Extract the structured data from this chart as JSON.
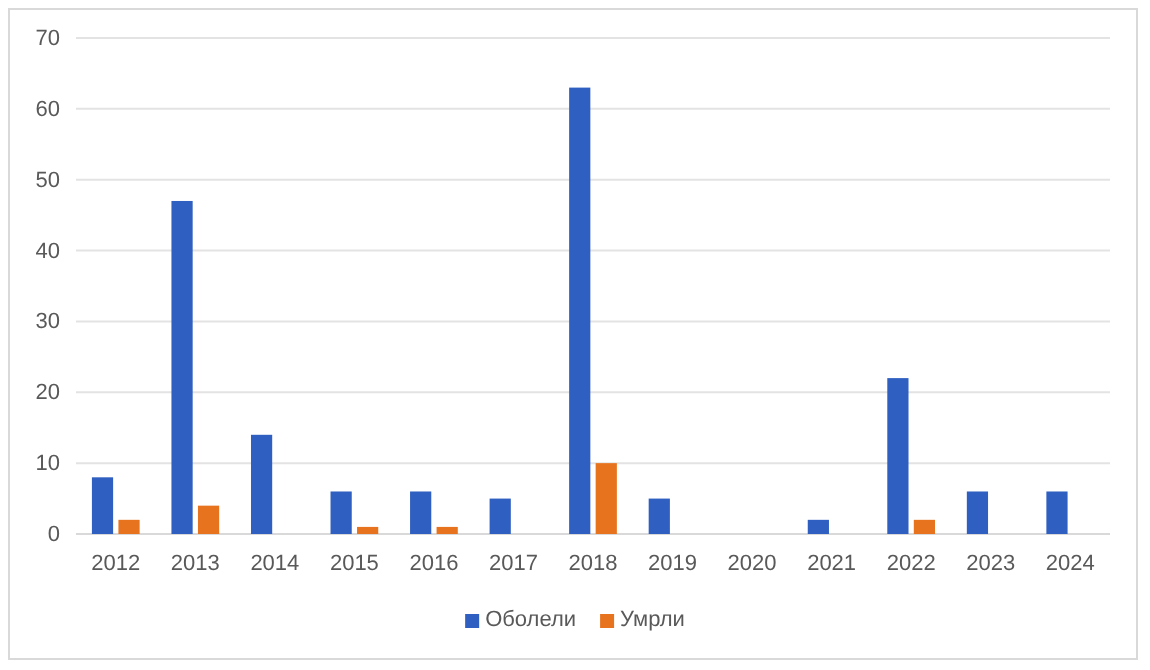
{
  "chart_data": {
    "type": "bar",
    "categories": [
      "2012",
      "2013",
      "2014",
      "2015",
      "2016",
      "2017",
      "2018",
      "2019",
      "2020",
      "2021",
      "2022",
      "2023",
      "2024"
    ],
    "series": [
      {
        "name": "Оболели",
        "color": "#2f5fc0",
        "values": [
          8,
          47,
          14,
          6,
          6,
          5,
          63,
          5,
          0,
          2,
          22,
          6,
          6
        ]
      },
      {
        "name": "Умрли",
        "color": "#e8731e",
        "values": [
          2,
          4,
          0,
          1,
          1,
          0,
          10,
          0,
          0,
          0,
          2,
          0,
          0
        ]
      }
    ],
    "ylim": [
      0,
      70
    ],
    "yticks": [
      0,
      10,
      20,
      30,
      40,
      50,
      60,
      70
    ],
    "grid": "y",
    "legend": "bottom"
  }
}
